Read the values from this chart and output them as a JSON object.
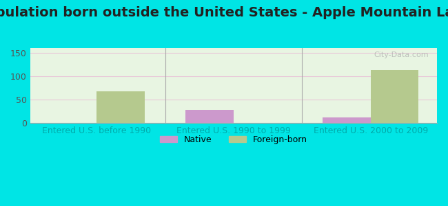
{
  "title": "Population born outside the United States - Apple Mountain Lake",
  "categories": [
    "Entered U.S. before 1990",
    "Entered U.S. 1990 to 1999",
    "Entered U.S. 2000 to 2009"
  ],
  "native_values": [
    0,
    28,
    12
  ],
  "foreign_values": [
    68,
    0,
    113
  ],
  "native_color": "#cc99cc",
  "foreign_color": "#b5c98e",
  "ylim": [
    0,
    160
  ],
  "yticks": [
    0,
    50,
    100,
    150
  ],
  "bar_width": 0.35,
  "outer_bg": "#00e5e5",
  "inner_bg": "#e8f5e2",
  "grid_color": "#e8c8d8",
  "xlabel_color": "#00aaaa",
  "ylabel_color": "#555555",
  "title_fontsize": 14,
  "tick_fontsize": 9,
  "legend_native": "Native",
  "legend_foreign": "Foreign-born",
  "watermark": "City-Data.com"
}
